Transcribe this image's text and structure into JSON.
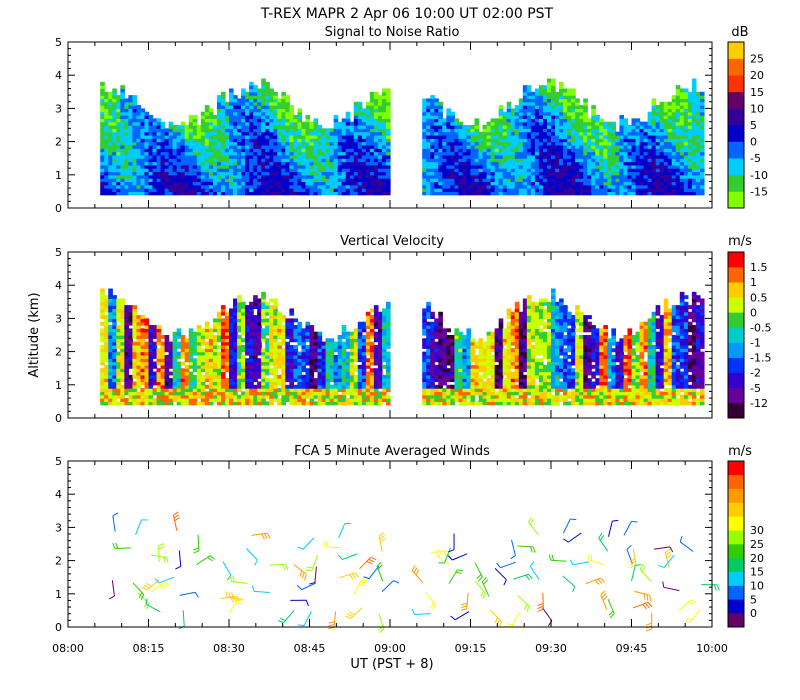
{
  "main_title": "T-REX   MAPR   2 Apr 06   10:00 UT   02:00   PST",
  "x_axis": {
    "label": "UT  (PST + 8)",
    "ticks": [
      "08:00",
      "08:15",
      "08:30",
      "08:45",
      "09:00",
      "09:15",
      "09:30",
      "09:45",
      "10:00"
    ],
    "range_minutes": [
      0,
      120
    ]
  },
  "y_axis_label": "Altitude (km)",
  "chart_data": [
    {
      "type": "heatmap",
      "title": "Signal to Noise Ratio",
      "unit": "dB",
      "ylim": [
        0,
        5
      ],
      "yticks": [
        "0",
        "1",
        "2",
        "3",
        "4",
        "5"
      ],
      "data_gap_minutes": [
        60,
        66
      ],
      "colorbar": {
        "labels": [
          "-15",
          "-10",
          "-5",
          "0",
          "5",
          "10",
          "15",
          "20",
          "25"
        ],
        "colors": [
          "#7fff00",
          "#33cc33",
          "#00ccff",
          "#0066ff",
          "#0000cc",
          "#330099",
          "#660066",
          "#ff3300",
          "#ff6600",
          "#ffcc00"
        ]
      }
    },
    {
      "type": "heatmap",
      "title": "Vertical Velocity",
      "unit": "m/s",
      "ylim": [
        0,
        5
      ],
      "yticks": [
        "0",
        "1",
        "2",
        "3",
        "4",
        "5"
      ],
      "data_gap_minutes": [
        60,
        66
      ],
      "colorbar": {
        "labels": [
          "-12",
          "-5",
          "-2",
          "-1.5",
          "-1",
          "-0.5",
          "0",
          "0.5",
          "1",
          "1.5"
        ],
        "colors": [
          "#330033",
          "#660099",
          "#3300cc",
          "#0033ff",
          "#0099ff",
          "#00cccc",
          "#33cc33",
          "#ccff00",
          "#ffcc00",
          "#ff6600",
          "#ff0000"
        ]
      }
    },
    {
      "type": "barbs",
      "title": "FCA 5 Minute Averaged Winds",
      "unit": "m/s",
      "ylim": [
        0,
        5
      ],
      "yticks": [
        "0",
        "1",
        "2",
        "3",
        "4",
        "5"
      ],
      "colorbar": {
        "labels": [
          "0",
          "5",
          "10",
          "15",
          "20",
          "25",
          "30"
        ],
        "colors": [
          "#660066",
          "#0000cc",
          "#0066ff",
          "#00ccff",
          "#00cc66",
          "#33cc00",
          "#99ff00",
          "#ffff00",
          "#ffcc00",
          "#ff9900",
          "#ff6600",
          "#ff0000"
        ]
      }
    }
  ]
}
